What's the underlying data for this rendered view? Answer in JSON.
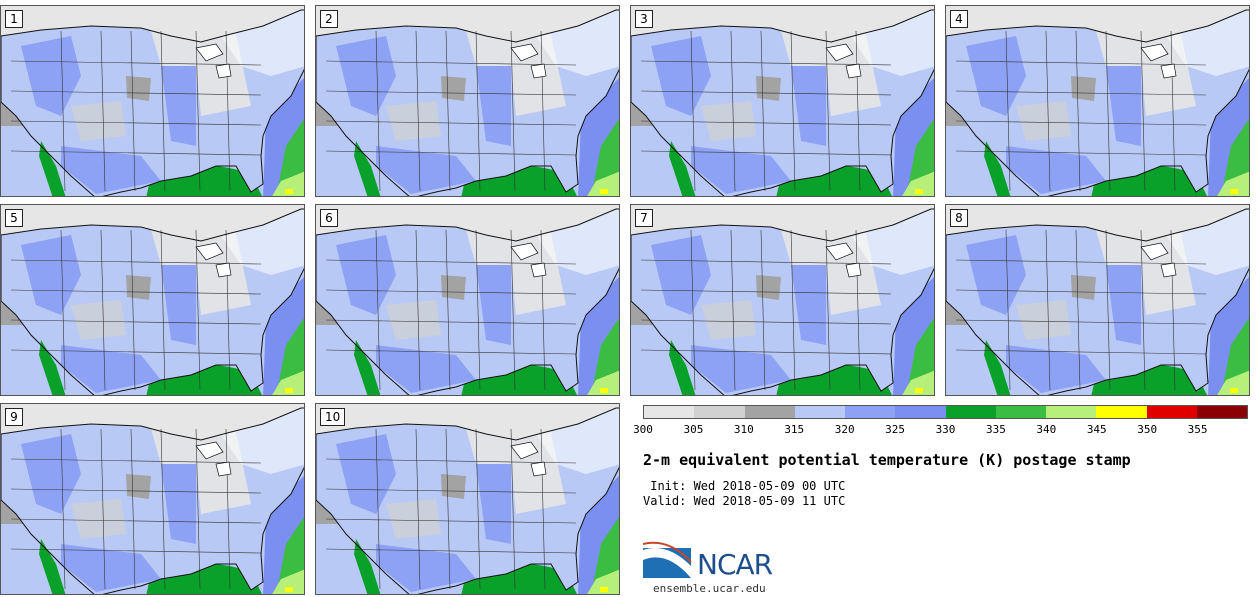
{
  "panels": [
    {
      "label": "1"
    },
    {
      "label": "2"
    },
    {
      "label": "3"
    },
    {
      "label": "4"
    },
    {
      "label": "5"
    },
    {
      "label": "6"
    },
    {
      "label": "7"
    },
    {
      "label": "8"
    },
    {
      "label": "9"
    },
    {
      "label": "10"
    }
  ],
  "colorbar": {
    "ticks": [
      "300",
      "305",
      "310",
      "315",
      "320",
      "325",
      "330",
      "335",
      "340",
      "345",
      "350",
      "355"
    ],
    "colors": [
      "#e6e6e6",
      "#d1d1d1",
      "#a3a3a3",
      "#b9c9f6",
      "#8ea2f5",
      "#7a8ff0",
      "#0aa12b",
      "#3bbd43",
      "#b6f07a",
      "#ffff00",
      "#e00000",
      "#8b0000"
    ]
  },
  "title": "2-m equivalent potential temperature (K) postage stamp",
  "init": " Init: Wed 2018-05-09 00 UTC",
  "valid": "Valid: Wed 2018-05-09 11 UTC",
  "logo": {
    "text": "NCAR",
    "url": "ensemble.ucar.edu"
  }
}
